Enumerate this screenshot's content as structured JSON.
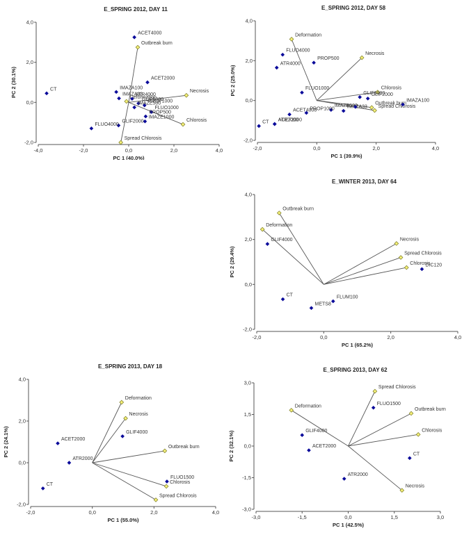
{
  "colors": {
    "score": "#0a0a9a",
    "loading_fill": "#f5f07a",
    "loading_stroke": "#7a7a20",
    "vector": "#555555"
  },
  "chart_data": [
    {
      "type": "scatter",
      "subtype": "pca-biplot",
      "title": "E_SPRING 2012, DAY 11",
      "xlabel": "PC 1 (40.0%)",
      "ylabel": "PC 2 (30.1%)",
      "xlim": [
        -4,
        4
      ],
      "ylim": [
        -2,
        4
      ],
      "xticks": [
        "-4,0",
        "-2,0",
        "0,0",
        "2,0",
        "4,0"
      ],
      "yticks": [
        "-2,0",
        "0,0",
        "2,0",
        "4,0"
      ],
      "xtick_values": [
        -4,
        -2,
        0,
        2,
        4
      ],
      "ytick_values": [
        -2,
        0,
        2,
        4
      ],
      "points": [
        {
          "label": "CT",
          "x": -3.63,
          "y": 0.45
        },
        {
          "label": "ACET4000",
          "x": 0.25,
          "y": 3.25
        },
        {
          "label": "ACET2000",
          "x": 0.83,
          "y": 1.0
        },
        {
          "label": "IMAZA100",
          "x": -0.55,
          "y": 0.52
        },
        {
          "label": "IMAZA33",
          "x": -0.43,
          "y": 0.2
        },
        {
          "label": "ATR4000",
          "x": 0.15,
          "y": 0.18
        },
        {
          "label": "GLIF6000",
          "x": 0.43,
          "y": -0.05
        },
        {
          "label": "PROP1000",
          "x": 0.7,
          "y": -0.15
        },
        {
          "label": "IMAZE500",
          "x": 0.25,
          "y": -0.25
        },
        {
          "label": "FLUO1000",
          "x": 1.0,
          "y": -0.48
        },
        {
          "label": "PROP500",
          "x": 0.75,
          "y": -0.7
        },
        {
          "label": "IMAZE1000",
          "x": 0.72,
          "y": -0.95
        },
        {
          "label": "GLIF2000",
          "x": -0.45,
          "y": -1.15
        },
        {
          "label": "FLUO4000",
          "x": -1.65,
          "y": -1.3
        }
      ],
      "vectors": [
        {
          "label": "Outbreak burn",
          "x": 0.4,
          "y": 2.75
        },
        {
          "label": "Necrosis",
          "x": 2.55,
          "y": 0.35
        },
        {
          "label": "Chlorosis",
          "x": 2.4,
          "y": -1.1
        },
        {
          "label": "Spread Chlorosis",
          "x": -0.35,
          "y": -2.0
        },
        {
          "label": "Deformation",
          "x": -0.1,
          "y": 0.05
        }
      ]
    },
    {
      "type": "scatter",
      "subtype": "pca-biplot",
      "title": "E_SPRING 2012, DAY 58",
      "xlabel": "PC 1 (39.9%)",
      "ylabel": "PC 2 (25.0%)",
      "xlim": [
        -2,
        4
      ],
      "ylim": [
        -2,
        4
      ],
      "xticks": [
        "-2,0",
        "0,0",
        "2,0",
        "4,0"
      ],
      "yticks": [
        "-2,0",
        "0,0",
        "2,0",
        "4,0"
      ],
      "xtick_values": [
        -2,
        0,
        2,
        4
      ],
      "ytick_values": [
        -2,
        0,
        2,
        4
      ],
      "points": [
        {
          "label": "FLUO4000",
          "x": -1.15,
          "y": 2.3
        },
        {
          "label": "ATR4000",
          "x": -1.35,
          "y": 1.65
        },
        {
          "label": "PROP500",
          "x": -0.1,
          "y": 1.9
        },
        {
          "label": "FLUO1000",
          "x": -0.5,
          "y": 0.4
        },
        {
          "label": "GLIF6000",
          "x": 1.45,
          "y": 0.17
        },
        {
          "label": "GLIF2000",
          "x": 1.72,
          "y": 0.1
        },
        {
          "label": "IMAZA100",
          "x": 2.9,
          "y": -0.2
        },
        {
          "label": "IMAZE500",
          "x": 0.48,
          "y": -0.47
        },
        {
          "label": "IMAZA33",
          "x": 0.9,
          "y": -0.52
        },
        {
          "label": "",
          "x": 1.3,
          "y": -0.32
        },
        {
          "label": "ACET4000",
          "x": -0.92,
          "y": -0.7
        },
        {
          "label": "PROP1000",
          "x": -0.35,
          "y": -0.62
        },
        {
          "label": "CT",
          "x": -1.95,
          "y": -1.28
        },
        {
          "label": "ACET2000",
          "x": -1.42,
          "y": -1.18
        },
        {
          "label": "ATR2000",
          "x": -1.42,
          "y": -1.18
        }
      ],
      "vectors": [
        {
          "label": "Deformation",
          "x": -0.85,
          "y": 3.08
        },
        {
          "label": "Necrosis",
          "x": 1.52,
          "y": 2.15
        },
        {
          "label": "Chlorosis",
          "x": 2.05,
          "y": 0.42
        },
        {
          "label": "Outbreak burn",
          "x": 1.85,
          "y": -0.35
        },
        {
          "label": "Spread Chlorosis",
          "x": 1.95,
          "y": -0.5
        }
      ]
    },
    {
      "type": "scatter",
      "subtype": "pca-biplot",
      "title": "E_WINTER 2013, DAY 64",
      "xlabel": "PC 1 (65.2%)",
      "ylabel": "PC 2 (29.4%)",
      "xlim": [
        -2,
        4
      ],
      "ylim": [
        -2,
        4
      ],
      "xticks": [
        "-2,0",
        "0,0",
        "2,0",
        "4,0"
      ],
      "yticks": [
        "-2,0",
        "0,0",
        "2,0",
        "4,0"
      ],
      "xtick_values": [
        -2,
        0,
        2,
        4
      ],
      "ytick_values": [
        -2,
        0,
        2,
        4
      ],
      "points": [
        {
          "label": "GLIF4000",
          "x": -1.68,
          "y": 1.8
        },
        {
          "label": "DIC120",
          "x": 2.93,
          "y": 0.68
        },
        {
          "label": "CT",
          "x": -1.22,
          "y": -0.66
        },
        {
          "label": "FLUM100",
          "x": 0.28,
          "y": -0.75
        },
        {
          "label": "METS8",
          "x": -0.37,
          "y": -1.05
        }
      ],
      "vectors": [
        {
          "label": "Outbreak burn",
          "x": -1.33,
          "y": 3.18
        },
        {
          "label": "Deformation",
          "x": -1.83,
          "y": 2.45
        },
        {
          "label": "Necrosis",
          "x": 2.17,
          "y": 1.82
        },
        {
          "label": "Spread Chlorosis",
          "x": 2.3,
          "y": 1.2
        },
        {
          "label": "Chlorosis",
          "x": 2.47,
          "y": 0.75
        }
      ]
    },
    {
      "type": "scatter",
      "subtype": "pca-biplot",
      "title": "E_SPRING 2013, DAY 18",
      "xlabel": "PC 1 (55.0%)",
      "ylabel": "PC 2 (24.1%)",
      "xlim": [
        -2,
        4
      ],
      "ylim": [
        -2,
        4
      ],
      "xticks": [
        "-2,0",
        "0,0",
        "2,0",
        "4,0"
      ],
      "yticks": [
        "-2,0",
        "0,0",
        "2,0",
        "4,0"
      ],
      "xtick_values": [
        -2,
        0,
        2,
        4
      ],
      "ytick_values": [
        -2,
        0,
        2,
        4
      ],
      "points": [
        {
          "label": "ACET2000",
          "x": -1.12,
          "y": 0.93
        },
        {
          "label": "ATR2000",
          "x": -0.75,
          "y": 0.0
        },
        {
          "label": "CT",
          "x": -1.6,
          "y": -1.23
        },
        {
          "label": "GLIF4000",
          "x": 0.98,
          "y": 1.27
        },
        {
          "label": "FLUO1500",
          "x": 2.42,
          "y": -0.9
        }
      ],
      "vectors": [
        {
          "label": "Deformation",
          "x": 0.95,
          "y": 2.9
        },
        {
          "label": "Necrosis",
          "x": 1.08,
          "y": 2.13
        },
        {
          "label": "Outbreak burn",
          "x": 2.35,
          "y": 0.57
        },
        {
          "label": "Chlorosis",
          "x": 2.4,
          "y": -1.13
        },
        {
          "label": "Spread Chlorosis",
          "x": 2.06,
          "y": -1.78
        }
      ]
    },
    {
      "type": "scatter",
      "subtype": "pca-biplot",
      "title": "E_SPRING 2013, DAY 62",
      "xlabel": "PC 1 (42.5%)",
      "ylabel": "PC 2 (32.1%)",
      "xlim": [
        -3,
        3
      ],
      "ylim": [
        -3,
        3
      ],
      "xticks": [
        "-3,0",
        "-1,5",
        "0,0",
        "1,5",
        "3,0"
      ],
      "yticks": [
        "-3,0",
        "-1,5",
        "0,0",
        "1,5",
        "3,0"
      ],
      "xtick_values": [
        -3,
        -1.5,
        0,
        1.5,
        3
      ],
      "ytick_values": [
        -3,
        -1.5,
        0,
        1.5,
        3
      ],
      "points": [
        {
          "label": "GLIF4000",
          "x": -1.5,
          "y": 0.52
        },
        {
          "label": "ACET2000",
          "x": -1.28,
          "y": -0.2
        },
        {
          "label": "ATR2000",
          "x": -0.13,
          "y": -1.55
        },
        {
          "label": "FLUO1500",
          "x": 0.82,
          "y": 1.82
        },
        {
          "label": "CT",
          "x": 2.0,
          "y": -0.57
        }
      ],
      "vectors": [
        {
          "label": "Deformation",
          "x": -1.85,
          "y": 1.7
        },
        {
          "label": "Spread Chlorosis",
          "x": 0.87,
          "y": 2.6
        },
        {
          "label": "Outbreak burn",
          "x": 2.05,
          "y": 1.55
        },
        {
          "label": "Chlorosis",
          "x": 2.28,
          "y": 0.55
        },
        {
          "label": "Necrosis",
          "x": 1.75,
          "y": -2.1
        }
      ]
    }
  ]
}
